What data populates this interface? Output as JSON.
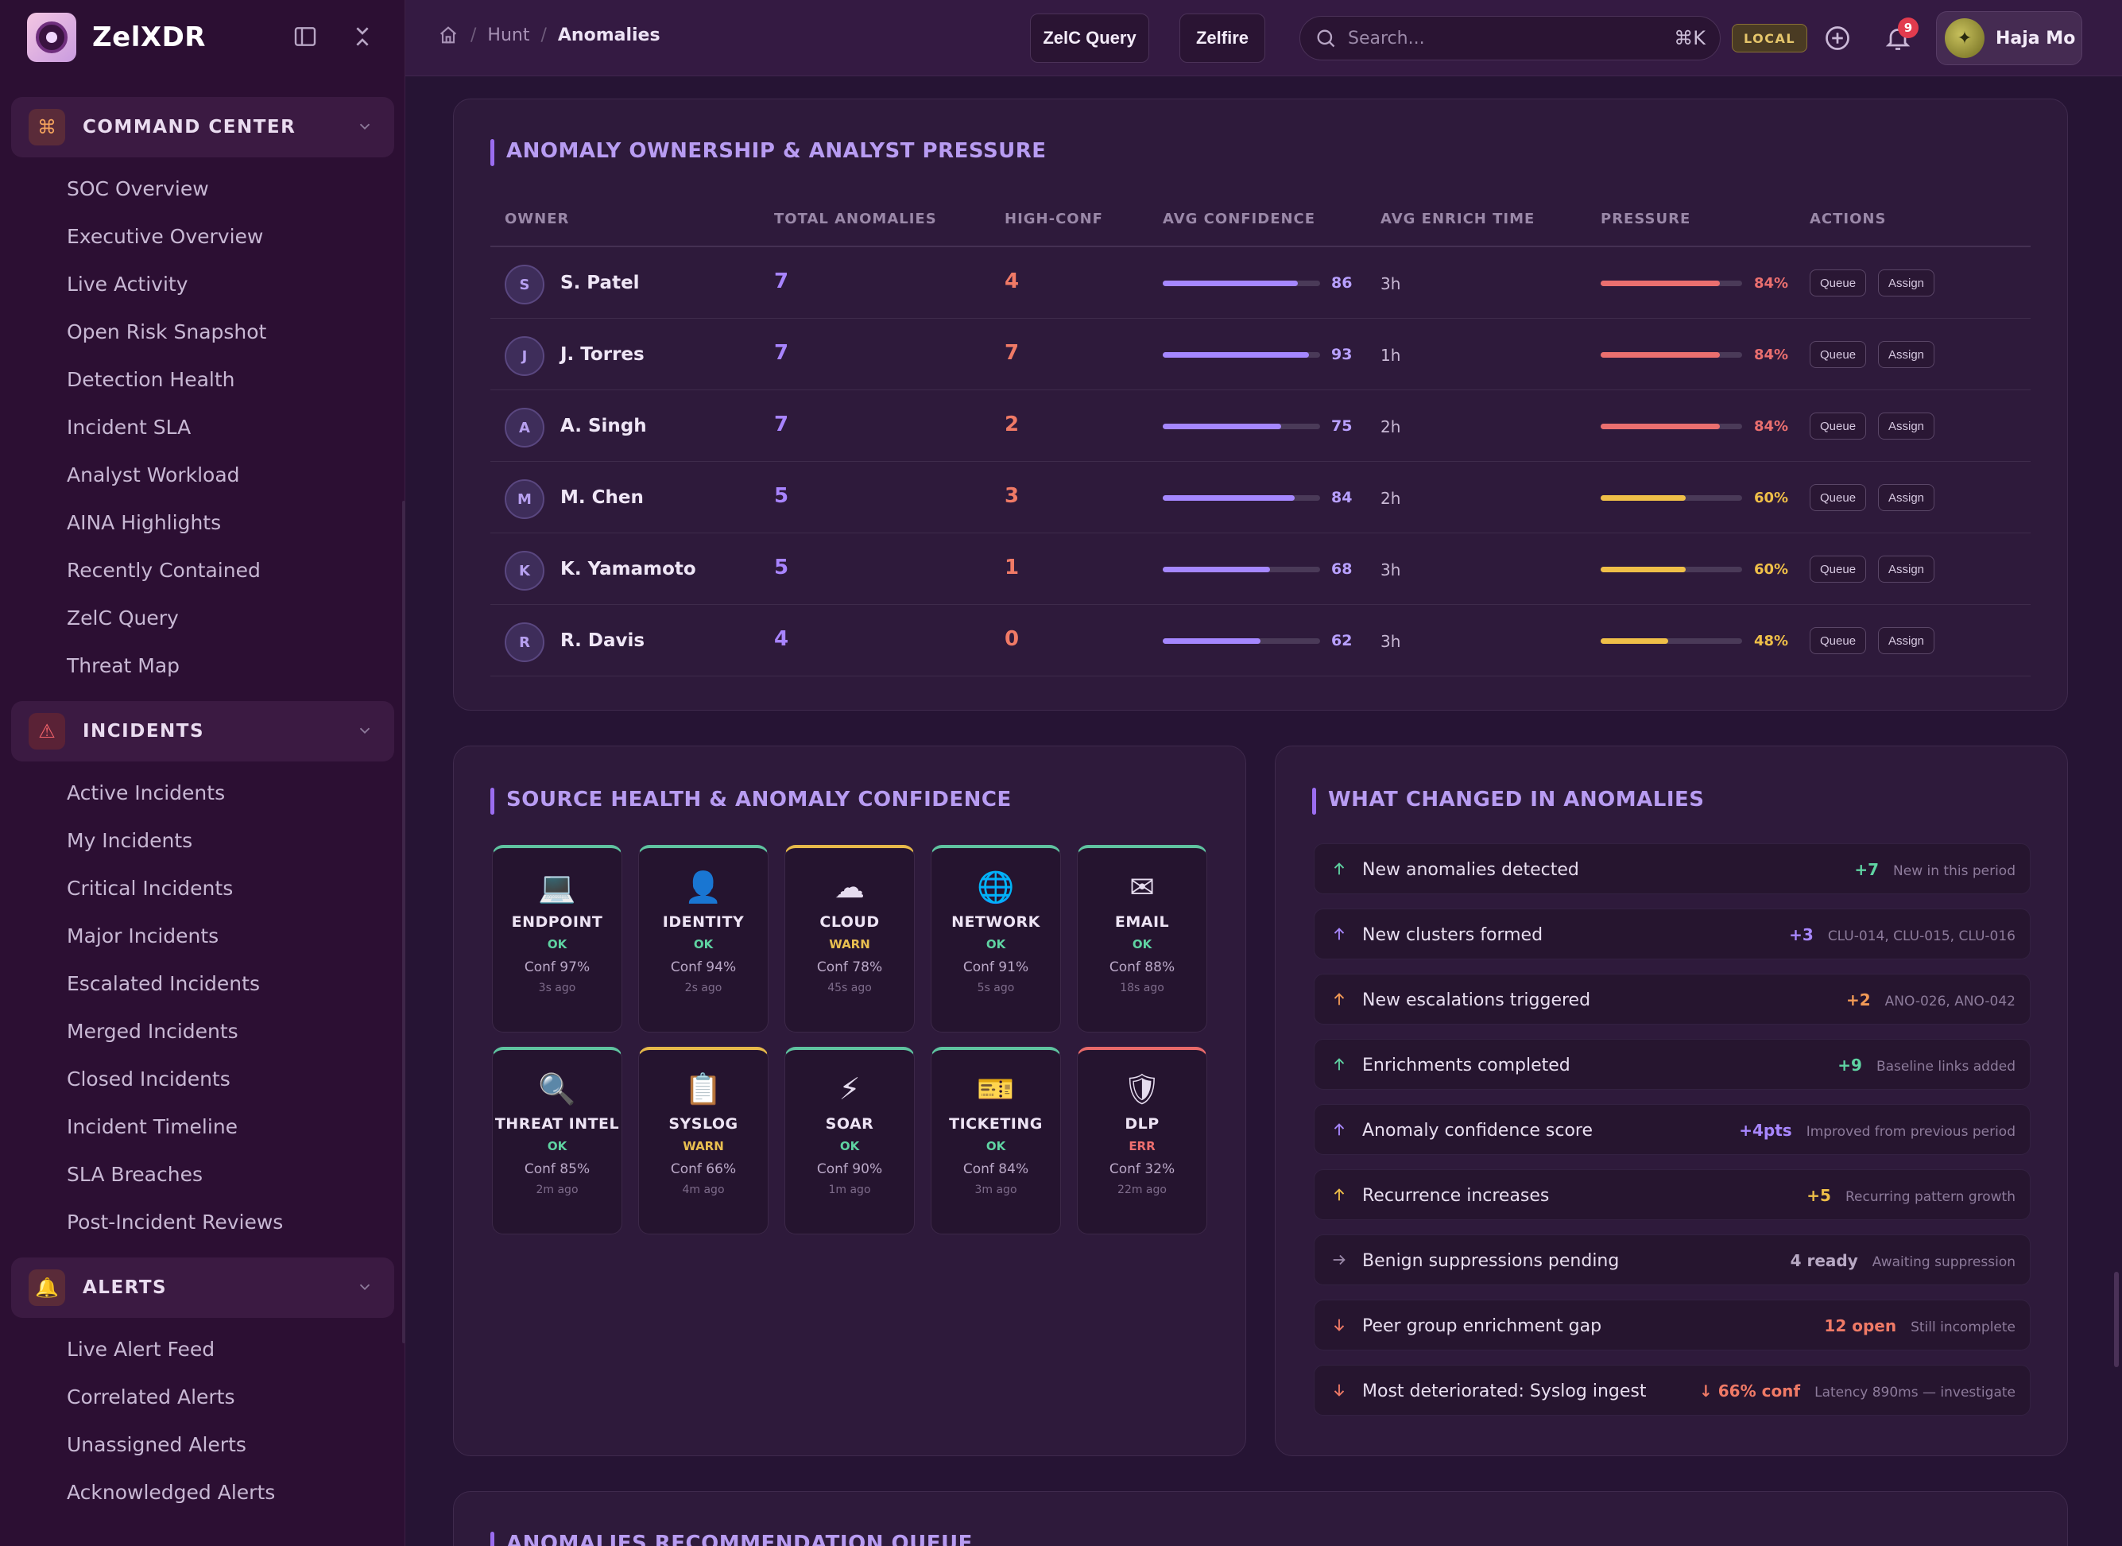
{
  "app": {
    "name": "ZelXDR"
  },
  "sidebar": {
    "sections": [
      {
        "label": "COMMAND CENTER",
        "icon": "command-icon",
        "items": [
          "SOC Overview",
          "Executive Overview",
          "Live Activity",
          "Open Risk Snapshot",
          "Detection Health",
          "Incident SLA",
          "Analyst Workload",
          "AINA Highlights",
          "Recently Contained",
          "ZelC Query",
          "Threat Map"
        ]
      },
      {
        "label": "INCIDENTS",
        "icon": "warning-triangle-icon",
        "items": [
          "Active Incidents",
          "My Incidents",
          "Critical Incidents",
          "Major Incidents",
          "Escalated Incidents",
          "Merged Incidents",
          "Closed Incidents",
          "Incident Timeline",
          "SLA Breaches",
          "Post-Incident Reviews"
        ]
      },
      {
        "label": "ALERTS",
        "icon": "bell-icon",
        "items": [
          "Live Alert Feed",
          "Correlated Alerts",
          "Unassigned Alerts",
          "Acknowledged Alerts"
        ]
      }
    ]
  },
  "topbar": {
    "breadcrumb": [
      "Hunt",
      "Anomalies"
    ],
    "query_button": "ZelC Query",
    "zelfire_button": "Zelfire",
    "search_placeholder": "Search...",
    "search_shortcut": "⌘K",
    "env_badge": "LOCAL",
    "notification_count": "9",
    "user_name": "Haja Mo"
  },
  "ownership": {
    "title": "ANOMALY OWNERSHIP & ANALYST PRESSURE",
    "columns": [
      "OWNER",
      "TOTAL ANOMALIES",
      "HIGH-CONF",
      "AVG CONFIDENCE",
      "AVG ENRICH TIME",
      "PRESSURE",
      "ACTIONS"
    ],
    "queue_label": "Queue",
    "assign_label": "Assign",
    "rows": [
      {
        "initial": "S",
        "owner": "S. Patel",
        "total": "7",
        "high_conf": "4",
        "avg_conf": "86",
        "enrich": "3h",
        "pressure": "84%",
        "pressure_pct": 84,
        "pressure_color": "#ea6f6f"
      },
      {
        "initial": "J",
        "owner": "J. Torres",
        "total": "7",
        "high_conf": "7",
        "avg_conf": "93",
        "enrich": "1h",
        "pressure": "84%",
        "pressure_pct": 84,
        "pressure_color": "#ea6f6f"
      },
      {
        "initial": "A",
        "owner": "A. Singh",
        "total": "7",
        "high_conf": "2",
        "avg_conf": "75",
        "enrich": "2h",
        "pressure": "84%",
        "pressure_pct": 84,
        "pressure_color": "#ea6f6f"
      },
      {
        "initial": "M",
        "owner": "M. Chen",
        "total": "5",
        "high_conf": "3",
        "avg_conf": "84",
        "enrich": "2h",
        "pressure": "60%",
        "pressure_pct": 60,
        "pressure_color": "#efbf48"
      },
      {
        "initial": "K",
        "owner": "K. Yamamoto",
        "total": "5",
        "high_conf": "1",
        "avg_conf": "68",
        "enrich": "3h",
        "pressure": "60%",
        "pressure_pct": 60,
        "pressure_color": "#efbf48"
      },
      {
        "initial": "R",
        "owner": "R. Davis",
        "total": "4",
        "high_conf": "0",
        "avg_conf": "62",
        "enrich": "3h",
        "pressure": "48%",
        "pressure_pct": 48,
        "pressure_color": "#efbf48"
      }
    ]
  },
  "sources": {
    "title": "SOURCE HEALTH & ANOMALY CONFIDENCE",
    "tiles": [
      {
        "name": "ENDPOINT",
        "icon": "laptop-icon",
        "glyph": "💻",
        "status": "OK",
        "level": "ok",
        "conf": "Conf 97%",
        "time": "3s ago"
      },
      {
        "name": "IDENTITY",
        "icon": "user-icon",
        "glyph": "👤",
        "status": "OK",
        "level": "ok",
        "conf": "Conf 94%",
        "time": "2s ago"
      },
      {
        "name": "CLOUD",
        "icon": "cloud-icon",
        "glyph": "☁",
        "status": "WARN",
        "level": "warn",
        "conf": "Conf 78%",
        "time": "45s ago"
      },
      {
        "name": "NETWORK",
        "icon": "globe-icon",
        "glyph": "🌐",
        "status": "OK",
        "level": "ok",
        "conf": "Conf 91%",
        "time": "5s ago"
      },
      {
        "name": "EMAIL",
        "icon": "envelope-icon",
        "glyph": "✉",
        "status": "OK",
        "level": "ok",
        "conf": "Conf 88%",
        "time": "18s ago"
      },
      {
        "name": "THREAT INTEL",
        "icon": "magnifier-icon",
        "glyph": "🔍",
        "status": "OK",
        "level": "ok",
        "conf": "Conf 85%",
        "time": "2m ago"
      },
      {
        "name": "SYSLOG",
        "icon": "clipboard-icon",
        "glyph": "📋",
        "status": "WARN",
        "level": "warn",
        "conf": "Conf 66%",
        "time": "4m ago"
      },
      {
        "name": "SOAR",
        "icon": "lightning-icon",
        "glyph": "⚡",
        "status": "OK",
        "level": "ok",
        "conf": "Conf 90%",
        "time": "1m ago"
      },
      {
        "name": "TICKETING",
        "icon": "ticket-icon",
        "glyph": "🎫",
        "status": "OK",
        "level": "ok",
        "conf": "Conf 84%",
        "time": "3m ago"
      },
      {
        "name": "DLP",
        "icon": "shield-icon",
        "glyph": "🛡",
        "status": "ERR",
        "level": "err",
        "conf": "Conf 32%",
        "time": "22m ago"
      }
    ]
  },
  "changes": {
    "title": "WHAT CHANGED IN ANOMALIES",
    "rows": [
      {
        "label": "New anomalies detected",
        "value": "+7",
        "note": "New in this period",
        "dir": "up",
        "arrow_color": "#5fd3a2",
        "value_color": "#5fd3a2"
      },
      {
        "label": "New clusters formed",
        "value": "+3",
        "note": "CLU-014, CLU-015, CLU-016",
        "dir": "up",
        "arrow_color": "#a887ff",
        "value_color": "#a887ff"
      },
      {
        "label": "New escalations triggered",
        "value": "+2",
        "note": "ANO-026, ANO-042",
        "dir": "up",
        "arrow_color": "#f29a56",
        "value_color": "#f29a56"
      },
      {
        "label": "Enrichments completed",
        "value": "+9",
        "note": "Baseline links added",
        "dir": "up",
        "arrow_color": "#5fd3a2",
        "value_color": "#5fd3a2"
      },
      {
        "label": "Anomaly confidence score",
        "value": "+4pts",
        "note": "Improved from previous period",
        "dir": "up",
        "arrow_color": "#a887ff",
        "value_color": "#a887ff"
      },
      {
        "label": "Recurrence increases",
        "value": "+5",
        "note": "Recurring pattern growth",
        "dir": "up",
        "arrow_color": "#efbf48",
        "value_color": "#efbf48"
      },
      {
        "label": "Benign suppressions pending",
        "value": "4 ready",
        "note": "Awaiting suppression",
        "dir": "right",
        "arrow_color": "#9a88a8",
        "value_color": "#b8a9c4"
      },
      {
        "label": "Peer group enrichment gap",
        "value": "12 open",
        "note": "Still incomplete",
        "dir": "down",
        "arrow_color": "#f07a66",
        "value_color": "#f07a66"
      },
      {
        "label": "Most deteriorated: Syslog ingest",
        "value": "↓ 66% conf",
        "note": "Latency 890ms — investigate",
        "dir": "down",
        "arrow_color": "#f07a66",
        "value_color": "#f07a66"
      }
    ]
  },
  "recommendations": {
    "title": "ANOMALIES RECOMMENDATION QUEUE"
  }
}
